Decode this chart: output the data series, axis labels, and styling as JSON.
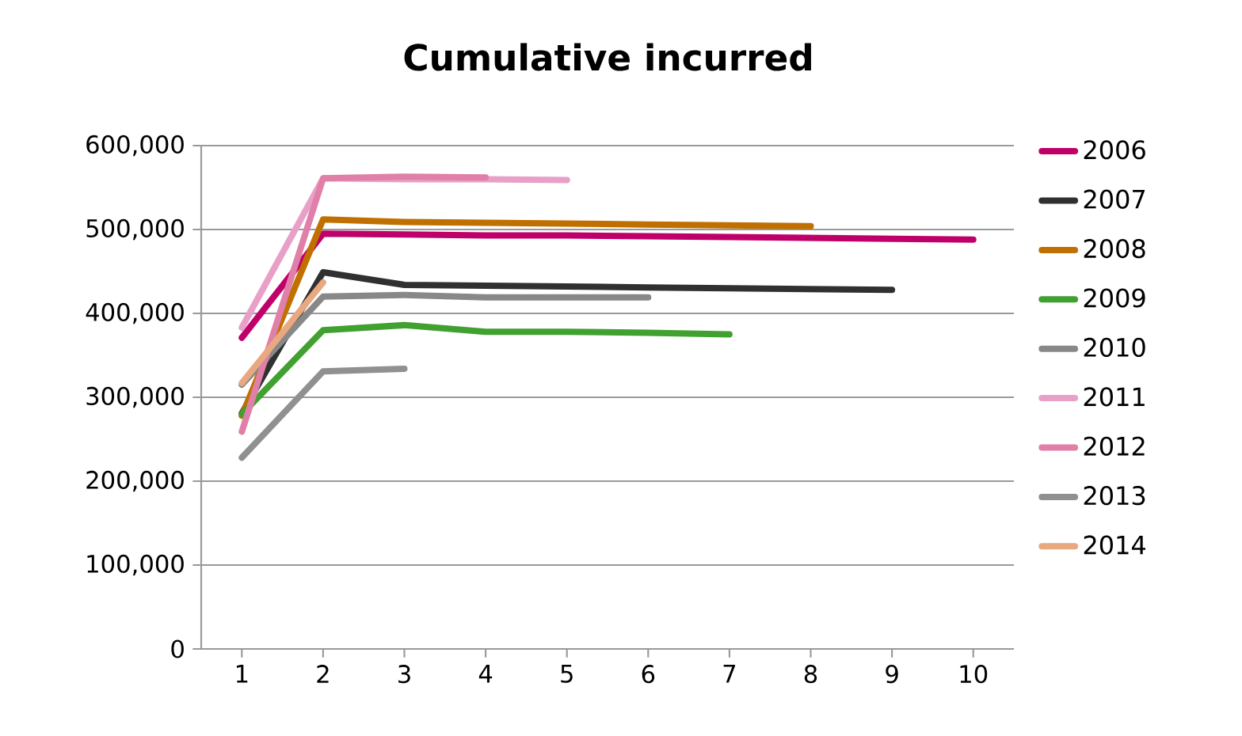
{
  "chart_data": {
    "type": "line",
    "title": "Cumulative incurred",
    "x": [
      1,
      2,
      3,
      4,
      5,
      6,
      7,
      8,
      9,
      10
    ],
    "xlim": [
      0.5,
      10.5
    ],
    "xticks": [
      1,
      2,
      3,
      4,
      5,
      6,
      7,
      8,
      9,
      10
    ],
    "ylim": [
      0,
      600000
    ],
    "yticks": [
      {
        "value": 0,
        "label": "0"
      },
      {
        "value": 100000,
        "label": "100,000"
      },
      {
        "value": 200000,
        "label": "200,000"
      },
      {
        "value": 300000,
        "label": "300,000"
      },
      {
        "value": 400000,
        "label": "400,000"
      },
      {
        "value": 500000,
        "label": "500,000"
      },
      {
        "value": 600000,
        "label": "600,000"
      }
    ],
    "grid": "y",
    "legend": "right",
    "marker": "none",
    "line_style": "solid",
    "series": [
      {
        "name": "2006",
        "color": "#c0006a",
        "values": [
          371000,
          495000,
          494000,
          493000,
          493000,
          492000,
          491000,
          490000,
          489000,
          488000
        ]
      },
      {
        "name": "2007",
        "color": "#303030",
        "x": [
          1,
          2,
          3,
          4,
          5,
          6,
          7,
          8,
          9
        ],
        "values": [
          281000,
          449000,
          434000,
          433000,
          432000,
          431000,
          430000,
          429000,
          428000
        ]
      },
      {
        "name": "2008",
        "color": "#c07000",
        "x": [
          1,
          2,
          3,
          4,
          5,
          6,
          7,
          8
        ],
        "values": [
          278000,
          512000,
          509000,
          508000,
          507000,
          506000,
          505000,
          504000
        ]
      },
      {
        "name": "2009",
        "color": "#40a030",
        "x": [
          1,
          2,
          3,
          4,
          5,
          6,
          7
        ],
        "values": [
          280000,
          380000,
          386000,
          378000,
          378000,
          377000,
          375000
        ]
      },
      {
        "name": "2010",
        "color": "#888888",
        "x": [
          1,
          2,
          3,
          4,
          5,
          6
        ],
        "values": [
          315000,
          420000,
          422000,
          419000,
          419000,
          419000
        ]
      },
      {
        "name": "2011",
        "color": "#e8a0c8",
        "x": [
          1,
          2,
          3,
          4,
          5
        ],
        "values": [
          383000,
          561000,
          560000,
          560000,
          559000
        ]
      },
      {
        "name": "2012",
        "color": "#e080a8",
        "x": [
          1,
          2,
          3,
          4
        ],
        "values": [
          259000,
          561000,
          563000,
          562000
        ]
      },
      {
        "name": "2013",
        "color": "#909090",
        "x": [
          1,
          2,
          3
        ],
        "values": [
          228000,
          331000,
          334000
        ]
      },
      {
        "name": "2014",
        "color": "#e8a880",
        "x": [
          1,
          2
        ],
        "values": [
          317000,
          437000
        ]
      }
    ]
  }
}
